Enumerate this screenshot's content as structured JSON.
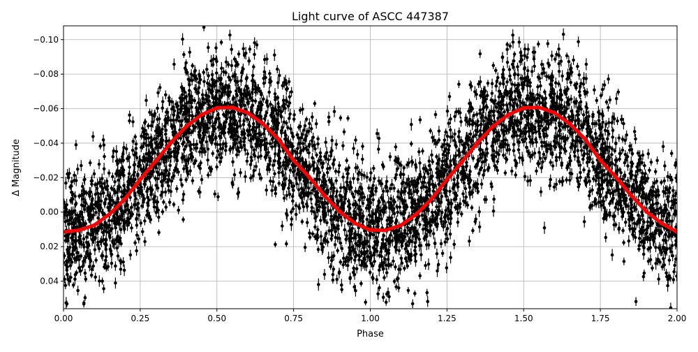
{
  "chart_data": {
    "type": "scatter",
    "title": "Light curve of ASCC 447387",
    "xlabel": "Phase",
    "ylabel": "Δ Magnitude",
    "xlim": [
      0,
      2.0
    ],
    "ylim": [
      0.056,
      -0.108
    ],
    "y_inverted": true,
    "grid": true,
    "xticks": [
      "0.00",
      "0.25",
      "0.50",
      "0.75",
      "1.00",
      "1.25",
      "1.50",
      "1.75",
      "2.00"
    ],
    "yticks": [
      "−0.10",
      "−0.08",
      "−0.06",
      "−0.04",
      "−0.02",
      "0.00",
      "0.02",
      "0.04"
    ],
    "series": [
      {
        "kind": "errorbar-points",
        "color": "#000000",
        "scatter_sd": 0.018
      },
      {
        "kind": "binned-mean",
        "color": "#ff0000",
        "phase": [
          0,
          0.05,
          0.1,
          0.15,
          0.2,
          0.25,
          0.3,
          0.35,
          0.4,
          0.45,
          0.5,
          0.55,
          0.6,
          0.65,
          0.7,
          0.75,
          0.8,
          0.85,
          0.9,
          0.95,
          1.0,
          1.05,
          1.1,
          1.15,
          1.2,
          1.25,
          1.3,
          1.35,
          1.4,
          1.45,
          1.5,
          1.55,
          1.6,
          1.65,
          1.7,
          1.75,
          1.8,
          1.85,
          1.9,
          1.95,
          2.0
        ],
        "values": [
          0.0115,
          0.0105,
          0.0076,
          0.0012,
          -0.0076,
          -0.019,
          -0.0295,
          -0.0403,
          -0.0497,
          -0.0565,
          -0.0604,
          -0.0607,
          -0.0576,
          -0.0512,
          -0.0424,
          -0.03,
          -0.0205,
          -0.0097,
          -0.0003,
          0.0065,
          0.0104,
          0.0105,
          0.0076,
          0.0012,
          -0.0076,
          -0.019,
          -0.0295,
          -0.0403,
          -0.0497,
          -0.0565,
          -0.0604,
          -0.0607,
          -0.0576,
          -0.0512,
          -0.0424,
          -0.03,
          -0.0205,
          -0.0097,
          -0.0003,
          0.0065,
          0.0115
        ]
      }
    ]
  }
}
